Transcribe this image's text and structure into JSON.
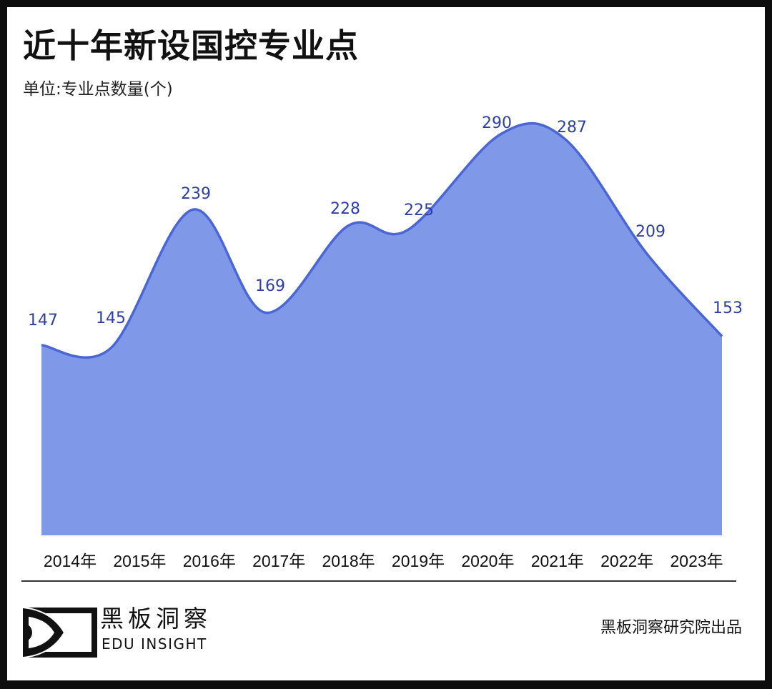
{
  "header": {
    "title": "近十年新设国控专业点",
    "unit": "单位:专业点数量(个)"
  },
  "footer": {
    "logo_cn": "黑板洞察",
    "logo_en": "EDU INSIGHT",
    "credit": "黑板洞察研究院出品"
  },
  "colors": {
    "area_fill": "#7f99e8",
    "line": "#4a66d6",
    "data_label": "#2d3fa6",
    "background": "#ffffff",
    "frame": "#0d0d0d"
  },
  "chart_data": {
    "type": "area",
    "title": "近十年新设国控专业点",
    "subtitle": "单位:专业点数量(个)",
    "xlabel": "",
    "ylabel": "专业点数量(个)",
    "categories": [
      "2014年",
      "2015年",
      "2016年",
      "2017年",
      "2018年",
      "2019年",
      "2020年",
      "2021年",
      "2022年",
      "2023年"
    ],
    "values": [
      147,
      145,
      239,
      169,
      228,
      225,
      290,
      287,
      209,
      153
    ],
    "series": [
      {
        "name": "新设国控专业点",
        "values": [
          147,
          145,
          239,
          169,
          228,
          225,
          290,
          287,
          209,
          153
        ]
      }
    ],
    "data_labels": [
      "147",
      "145",
      "239",
      "169",
      "228",
      "225",
      "290",
      "287",
      "209",
      "153"
    ],
    "grid": false,
    "legend": "none",
    "smooth": true
  }
}
